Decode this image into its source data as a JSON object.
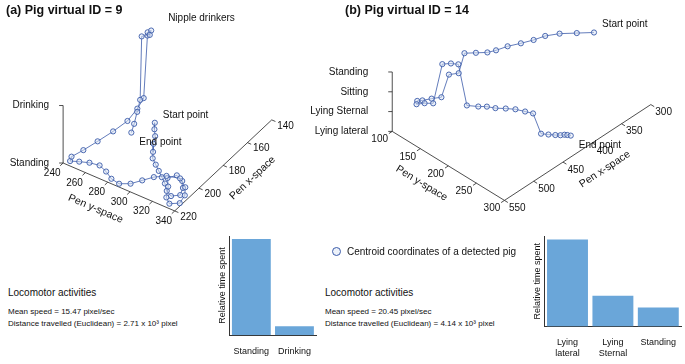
{
  "chart_data": [
    {
      "type": "scatter3d",
      "title": "(a) Pig virtual ID = 9",
      "x_label": "Pen x-space",
      "y_label": "Pen y-space",
      "z_categories": [
        "Standing",
        "Drinking"
      ],
      "xlim": [
        140,
        220
      ],
      "xticks": [
        140,
        160,
        180,
        200,
        220
      ],
      "ylim": [
        240,
        340
      ],
      "yticks": [
        240,
        260,
        280,
        300,
        320,
        340
      ],
      "start_label": "Start point",
      "end_label": "End point",
      "drinkers_label": "Nipple drinkers",
      "legend": "bottom",
      "series": [
        {
          "name": "Centroid coordinates of a detected pig",
          "color": "#3b5ba9",
          "marker": "circle",
          "line_style": "solid",
          "x": [
            172,
            176,
            180,
            185,
            190,
            194,
            197,
            200,
            203,
            206,
            210,
            212,
            209,
            204,
            200,
            198,
            202,
            207,
            214,
            217,
            214,
            208,
            203,
            199,
            201,
            205,
            210,
            215,
            218,
            217,
            214,
            212,
            213,
            215,
            217,
            214,
            207,
            198,
            188,
            178,
            168,
            160,
            156,
            154,
            152,
            155,
            158,
            162,
            170,
            178,
            184
          ],
          "y": [
            270,
            274,
            279,
            283,
            288,
            292,
            298,
            304,
            310,
            316,
            322,
            328,
            333,
            330,
            325,
            318,
            314,
            320,
            326,
            332,
            338,
            336,
            331,
            322,
            312,
            305,
            300,
            295,
            288,
            280,
            272,
            264,
            256,
            249,
            243,
            241,
            244,
            247,
            250,
            252,
            250,
            247,
            246,
            244,
            245,
            247,
            243,
            246,
            252,
            258,
            262
          ],
          "z": [
            "Standing",
            "Standing",
            "Standing",
            "Standing",
            "Standing",
            "Standing",
            "Standing",
            "Standing",
            "Standing",
            "Standing",
            "Standing",
            "Standing",
            "Standing",
            "Standing",
            "Standing",
            "Standing",
            "Standing",
            "Standing",
            "Standing",
            "Standing",
            "Standing",
            "Standing",
            "Standing",
            "Standing",
            "Standing",
            "Standing",
            "Standing",
            "Standing",
            "Standing",
            "Standing",
            "Standing",
            "Standing",
            "Standing",
            "Standing",
            "Standing",
            "Standing",
            "Standing",
            "Standing",
            "Standing",
            "Standing",
            "Standing",
            "Standing",
            "Drinking",
            "Drinking",
            "Drinking",
            "Drinking",
            "Drinking",
            "Standing",
            "Standing",
            "Standing",
            "Standing"
          ]
        }
      ]
    },
    {
      "type": "bar",
      "title": "Locomotor activities",
      "annotations": [
        "Mean speed = 15.47 pixel/sec",
        "Distance travelled (Euclidean) = 2.71 x 10³ pixel"
      ],
      "y_label": "Relative time spent",
      "categories": [
        "Standing",
        "Drinking"
      ],
      "values": [
        0.97,
        0.09
      ],
      "color": "#6aa6d9",
      "ylim": [
        0,
        1
      ],
      "tick_labels": "x",
      "grid": false
    },
    {
      "type": "scatter3d",
      "title": "(b) Pig virtual ID = 14",
      "x_label": "Pen x-space",
      "y_label": "Pen y-space",
      "z_categories": [
        "Lying lateral",
        "Lying Sternal",
        "Sitting",
        "Standing"
      ],
      "xlim": [
        300,
        550
      ],
      "xticks": [
        300,
        350,
        400,
        450,
        500,
        550
      ],
      "ylim": [
        100,
        300
      ],
      "yticks": [
        100,
        150,
        200,
        250,
        300
      ],
      "start_label": "Start point",
      "end_label": "End point",
      "series": [
        {
          "color": "#3b5ba9",
          "marker": "circle",
          "line_style": "solid",
          "x": [
            330,
            345,
            360,
            375,
            390,
            405,
            420,
            435,
            445,
            455,
            465,
            470,
            480,
            490,
            500,
            510,
            515,
            520,
            512,
            505,
            498,
            490,
            485,
            480,
            472,
            465,
            460,
            452,
            445,
            440,
            436,
            430,
            425,
            420,
            416,
            412,
            410,
            408
          ],
          "y": [
            230,
            215,
            200,
            190,
            185,
            178,
            170,
            165,
            160,
            150,
            140,
            135,
            128,
            125,
            118,
            112,
            108,
            112,
            118,
            126,
            135,
            142,
            150,
            160,
            172,
            180,
            190,
            200,
            210,
            222,
            232,
            240,
            248,
            255,
            260,
            263,
            266,
            270
          ],
          "z": [
            "Standing",
            "Standing",
            "Standing",
            "Standing",
            "Standing",
            "Standing",
            "Standing",
            "Standing",
            "Standing",
            "Standing",
            "Standing",
            "Sitting",
            "Sitting",
            "Lying Sternal",
            "Lying Sternal",
            "Lying Sternal",
            "Lying Sternal",
            "Lying Sternal",
            "Lying Sternal",
            "Lying Sternal",
            "Standing",
            "Standing",
            "Standing",
            "Lying Sternal",
            "Lying Sternal",
            "Lying Sternal",
            "Lying Sternal",
            "Lying Sternal",
            "Lying Sternal",
            "Lying Sternal",
            "Lying Sternal",
            "Lying lateral",
            "Lying lateral",
            "Lying lateral",
            "Lying lateral",
            "Lying lateral",
            "Lying lateral",
            "Lying lateral"
          ]
        }
      ]
    },
    {
      "type": "bar",
      "title": "Locomotor activities",
      "annotations": [
        "Mean speed = 20.45 pixel/sec",
        "Distance travelled (Euclidean) = 4.14 x 10³ pixel"
      ],
      "y_label": "Relative time spent",
      "categories": [
        "Lying lateral",
        "Lying Sternal",
        "Standing"
      ],
      "values": [
        0.96,
        0.34,
        0.21
      ],
      "color": "#6aa6d9",
      "ylim": [
        0,
        1
      ],
      "tick_labels": "x",
      "grid": false
    }
  ]
}
